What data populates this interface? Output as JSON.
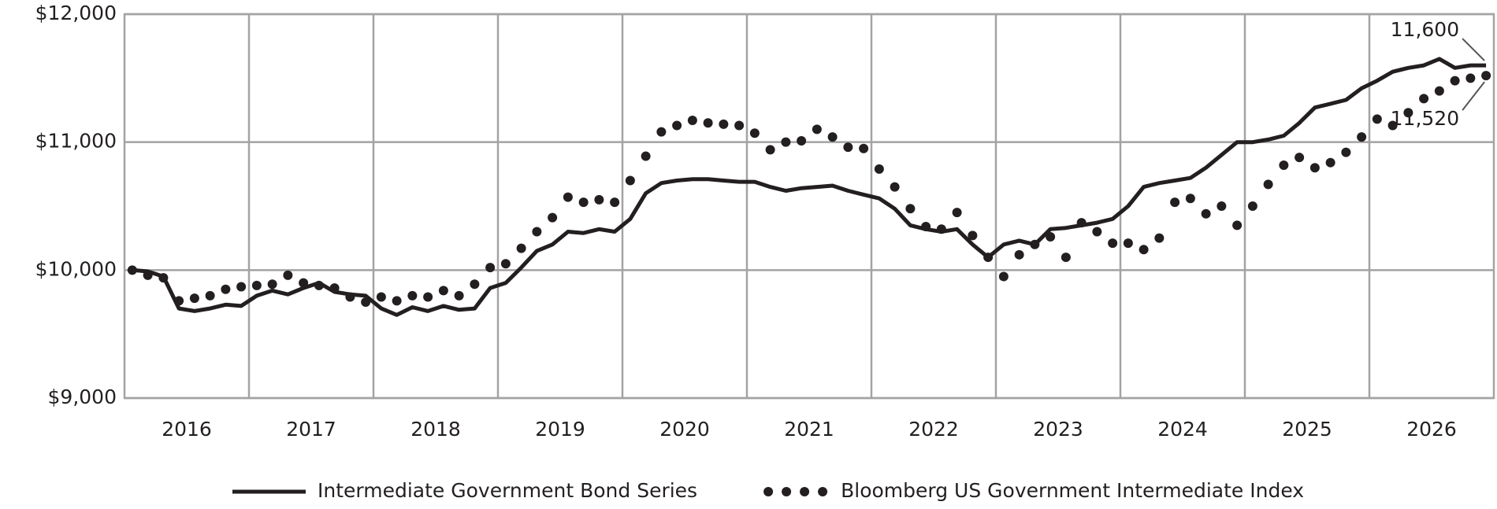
{
  "chart_data": {
    "type": "line",
    "categories": [
      null,
      null,
      null,
      null,
      "2016",
      null,
      null,
      null,
      null,
      null,
      null,
      null,
      "2017",
      null,
      null,
      null,
      null,
      null,
      null,
      null,
      "2018",
      null,
      null,
      null,
      null,
      null,
      null,
      null,
      "2019",
      null,
      null,
      null,
      null,
      null,
      null,
      null,
      "2020",
      null,
      null,
      null,
      null,
      null,
      null,
      null,
      "2021",
      null,
      null,
      null,
      null,
      null,
      null,
      null,
      "2022",
      null,
      null,
      null,
      null,
      null,
      null,
      null,
      "2023",
      null,
      null,
      null,
      null,
      null,
      null,
      null,
      "2024",
      null,
      null,
      null,
      null,
      null,
      null,
      null,
      "2025",
      null,
      null,
      null,
      null,
      null,
      null,
      null,
      "2026",
      null,
      null,
      null
    ],
    "series": [
      {
        "name": "Intermediate Government Bond Series",
        "color": "#231f20",
        "style": "line",
        "values": [
          10000,
          9990,
          9950,
          9700,
          9680,
          9700,
          9730,
          9720,
          9800,
          9840,
          9810,
          9860,
          9900,
          9830,
          9810,
          9800,
          9700,
          9650,
          9710,
          9680,
          9720,
          9690,
          9700,
          9860,
          9900,
          10020,
          10150,
          10200,
          10300,
          10290,
          10320,
          10300,
          10400,
          10600,
          10680,
          10700,
          10710,
          10710,
          10700,
          10690,
          10690,
          10650,
          10620,
          10640,
          10650,
          10660,
          10620,
          10590,
          10560,
          10480,
          10350,
          10320,
          10300,
          10320,
          10200,
          10100,
          10200,
          10230,
          10200,
          10320,
          10330,
          10350,
          10370,
          10400,
          10500,
          10650,
          10680,
          10700,
          10720,
          10800,
          10900,
          11000,
          11000,
          11020,
          11050,
          11150,
          11270,
          11300,
          11330,
          11420,
          11480,
          11550,
          11580,
          11600,
          11650,
          11580,
          11600,
          11600
        ],
        "value_labels": [
          null,
          null,
          null,
          null,
          null,
          null,
          null,
          null,
          null,
          null,
          null,
          null,
          null,
          null,
          null,
          null,
          null,
          null,
          null,
          null,
          null,
          null,
          null,
          null,
          null,
          null,
          null,
          null,
          null,
          null,
          null,
          null,
          null,
          null,
          null,
          null,
          null,
          null,
          null,
          null,
          null,
          null,
          null,
          null,
          null,
          null,
          null,
          null,
          null,
          null,
          null,
          null,
          null,
          null,
          null,
          null,
          null,
          null,
          null,
          null,
          null,
          null,
          null,
          null,
          null,
          null,
          null,
          null,
          null,
          null,
          null,
          null,
          null,
          null,
          null,
          null,
          null,
          null,
          null,
          null,
          null,
          null,
          null,
          null,
          null,
          null,
          null,
          "11,600"
        ]
      },
      {
        "name": "Bloomberg US Government Intermediate Index",
        "color": "#231f20",
        "style": "dots",
        "values": [
          10000,
          9960,
          9940,
          9760,
          9780,
          9800,
          9850,
          9870,
          9880,
          9890,
          9960,
          9900,
          9880,
          9860,
          9790,
          9750,
          9790,
          9760,
          9800,
          9790,
          9840,
          9800,
          9890,
          10020,
          10050,
          10170,
          10300,
          10410,
          10570,
          10530,
          10550,
          10530,
          10700,
          10890,
          11080,
          11130,
          11170,
          11150,
          11140,
          11130,
          11070,
          10940,
          11000,
          11010,
          11100,
          11040,
          10960,
          10950,
          10790,
          10650,
          10480,
          10340,
          10320,
          10450,
          10270,
          10100,
          9950,
          10120,
          10200,
          10260,
          10100,
          10370,
          10300,
          10210,
          10210,
          10160,
          10250,
          10530,
          10560,
          10440,
          10500,
          10350,
          10500,
          10670,
          10820,
          10880,
          10800,
          10840,
          10920,
          11040,
          11180,
          11130,
          11230,
          11340,
          11400,
          11480,
          11500,
          11520
        ],
        "value_labels": [
          null,
          null,
          null,
          null,
          null,
          null,
          null,
          null,
          null,
          null,
          null,
          null,
          null,
          null,
          null,
          null,
          null,
          null,
          null,
          null,
          null,
          null,
          null,
          null,
          null,
          null,
          null,
          null,
          null,
          null,
          null,
          null,
          null,
          null,
          null,
          null,
          null,
          null,
          null,
          null,
          null,
          null,
          null,
          null,
          null,
          null,
          null,
          null,
          null,
          null,
          null,
          null,
          null,
          null,
          null,
          null,
          null,
          null,
          null,
          null,
          null,
          null,
          null,
          null,
          null,
          null,
          null,
          null,
          null,
          null,
          null,
          null,
          null,
          null,
          null,
          null,
          null,
          null,
          null,
          null,
          null,
          null,
          null,
          null,
          null,
          null,
          null,
          "11,520"
        ]
      }
    ],
    "ylim": [
      9000,
      12000
    ],
    "yticks": [
      {
        "value": 9000,
        "label": "$9,000"
      },
      {
        "value": 10000,
        "label": "$10,000"
      },
      {
        "value": 11000,
        "label": "$11,000"
      },
      {
        "value": 12000,
        "label": "$12,000"
      }
    ],
    "grid": true,
    "legend": "bottom"
  }
}
